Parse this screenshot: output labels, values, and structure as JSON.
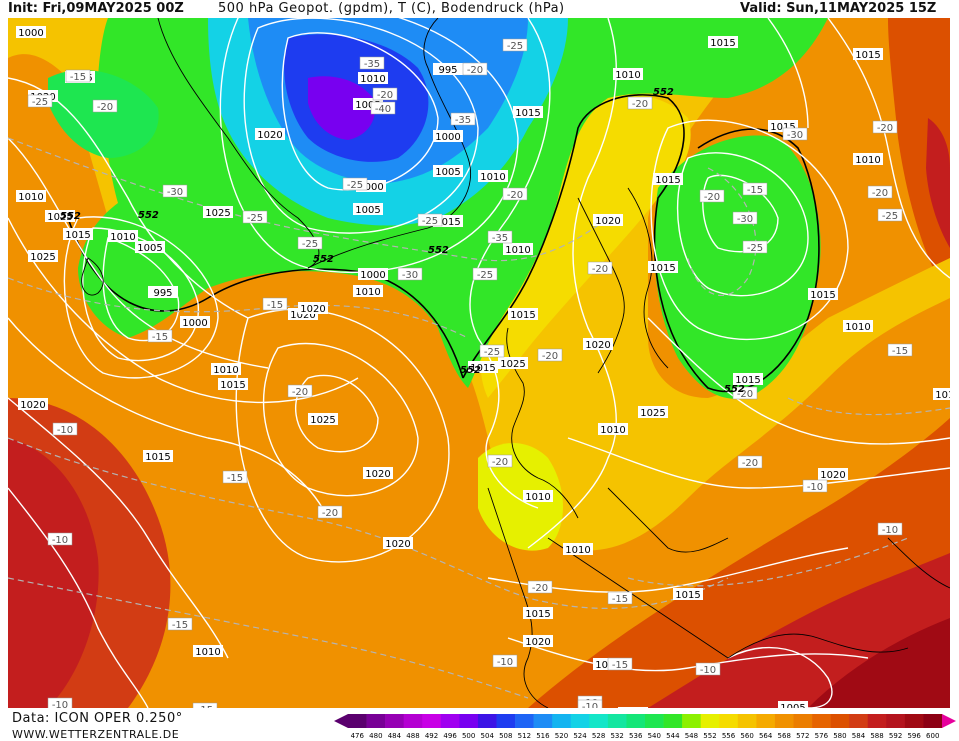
{
  "header": {
    "init": "Init: Fri,09MAY2025 00Z",
    "title": "500 hPa Geopot. (gpdm), T (C), Bodendruck (hPa)",
    "valid": "Valid: Sun,11MAY2025 15Z"
  },
  "footer": {
    "data_source": "Data: ICON OPER 0.250°",
    "website": "WWW.WETTERZENTRALE.DE"
  },
  "legend": {
    "values": [
      "476",
      "480",
      "484",
      "488",
      "492",
      "496",
      "500",
      "504",
      "508",
      "512",
      "516",
      "520",
      "524",
      "528",
      "532",
      "536",
      "540",
      "544",
      "548",
      "552",
      "556",
      "560",
      "564",
      "568",
      "572",
      "576",
      "580",
      "584",
      "588",
      "592",
      "596",
      "600"
    ],
    "colors": [
      "#5a006e",
      "#780096",
      "#9600b4",
      "#b400d2",
      "#c800e6",
      "#a000f0",
      "#7800f0",
      "#3c14e6",
      "#1e3cf0",
      "#1e64f5",
      "#1e8cf5",
      "#14b4f0",
      "#14d2e6",
      "#14e6c8",
      "#14e6a0",
      "#14e678",
      "#1ee650",
      "#32e628",
      "#8cf000",
      "#e6f000",
      "#f5dc00",
      "#f5c300",
      "#f5aa00",
      "#f09100",
      "#eb7d00",
      "#e66400",
      "#dc5000",
      "#d23c14",
      "#c31e1e",
      "#b4141e",
      "#a00a14",
      "#8c0014"
    ]
  },
  "isobar_labels": [
    "1015",
    "1020",
    "1025",
    "1015",
    "1010",
    "1005",
    "995",
    "1000",
    "1010",
    "1015",
    "1020",
    "1025",
    "1020",
    "1010",
    "1005",
    "1000",
    "1005",
    "1015",
    "1010",
    "1010",
    "1000",
    "1005",
    "995",
    "1000",
    "1010",
    "1015",
    "1020",
    "1025",
    "1020",
    "1025",
    "1015",
    "1020",
    "1015",
    "1010",
    "1020",
    "1015",
    "1015",
    "1010",
    "1015",
    "1010",
    "1015",
    "1025",
    "1020",
    "1015",
    "1015",
    "1010",
    "1015",
    "1010",
    "1015",
    "1020",
    "1010",
    "1020",
    "1015",
    "1010",
    "1015",
    "1005",
    "1010",
    "1025",
    "1020",
    "1010",
    "1000",
    "1020",
    "1015"
  ],
  "temp_labels": [
    "-15",
    "-20",
    "-25",
    "-30",
    "-35",
    "-40",
    "-35",
    "-35",
    "-30",
    "-30",
    "-25",
    "-25",
    "-25",
    "-25",
    "-20",
    "-20",
    "-15",
    "-15",
    "-25",
    "-25",
    "-20",
    "-20",
    "-20",
    "-20",
    "-20",
    "-20",
    "-20",
    "-25",
    "-30",
    "-25",
    "-20",
    "-15",
    "-15",
    "-15",
    "-15",
    "-15",
    "-10",
    "-10",
    "-10",
    "-10",
    "-10",
    "-10",
    "-10",
    "-10",
    "-20",
    "-15",
    "-20",
    "-25",
    "-20",
    "-20",
    "-20",
    "-10",
    "-15"
  ],
  "height_labels": [
    "552",
    "552",
    "552",
    "552",
    "552",
    "552",
    "552"
  ]
}
